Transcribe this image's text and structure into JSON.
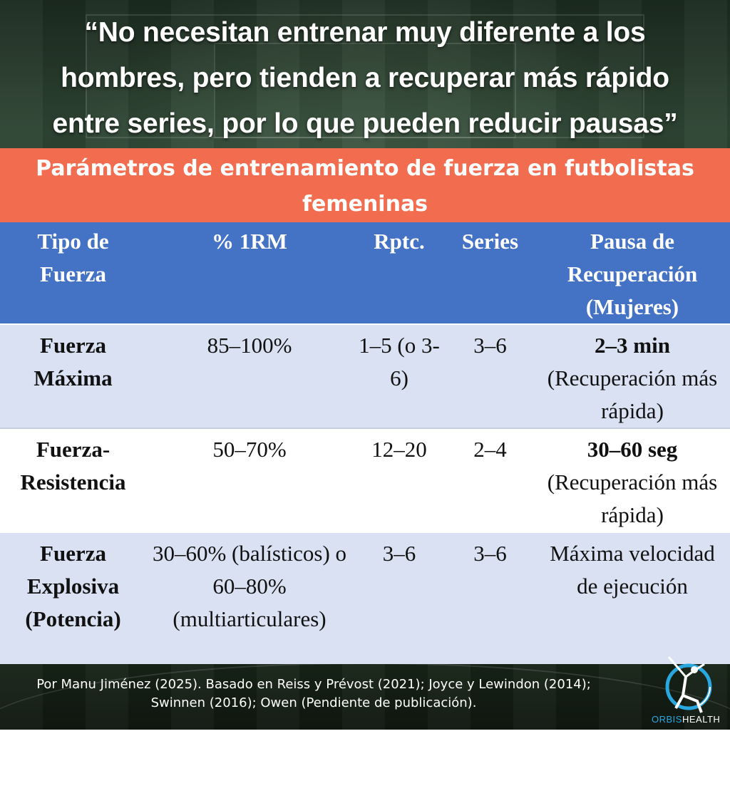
{
  "quote": {
    "line1": "“No necesitan entrenar muy diferente a los",
    "line2": "hombres, pero tienden a recuperar más rápido",
    "line3": "entre series, por lo que pueden reducir pausas”"
  },
  "title": "Parámetros de entrenamiento de fuerza en futbolistas femeninas",
  "columns": [
    "Tipo de Fuerza",
    "% 1RM",
    "Rptc.",
    "Series",
    "Pausa de Recuperación (Mujeres)"
  ],
  "rows": [
    {
      "type": "Fuerza Máxima",
      "rm": "85–100%",
      "reps": "1–5 (o 3-6)",
      "series": "3–6",
      "pause_bold": "2–3 min",
      "pause_note": "(Recuperación más rápida)"
    },
    {
      "type": "Fuerza-Resistencia",
      "rm": "50–70%",
      "reps": "12–20",
      "series": "2–4",
      "pause_bold": "30–60 seg",
      "pause_note": "(Recuperación más rápida)"
    },
    {
      "type": "Fuerza Explosiva (Potencia)",
      "rm": "30–60% (balísticos) o 60–80% (multiarticulares)",
      "reps": "3–6",
      "series": "3–6",
      "pause_bold": "",
      "pause_note": "Máxima velocidad de ejecución"
    }
  ],
  "footer": {
    "author": "Por Manu Jiménez (2025). Basado en ",
    "refs": "Reiss y Prévost (2021); Joyce y Lewindon (2014); Swinnen (2016); Owen (Pendiente de publicación)."
  },
  "logo": {
    "icon": "runner-logo-icon",
    "brand_a": "ORBIS",
    "brand_b": "HEALTH",
    "accent": "#29a8e0"
  },
  "colors": {
    "title_bg": "#f26c4f",
    "header_bg": "#4472c4",
    "row_alt": "#d9e1f2"
  }
}
